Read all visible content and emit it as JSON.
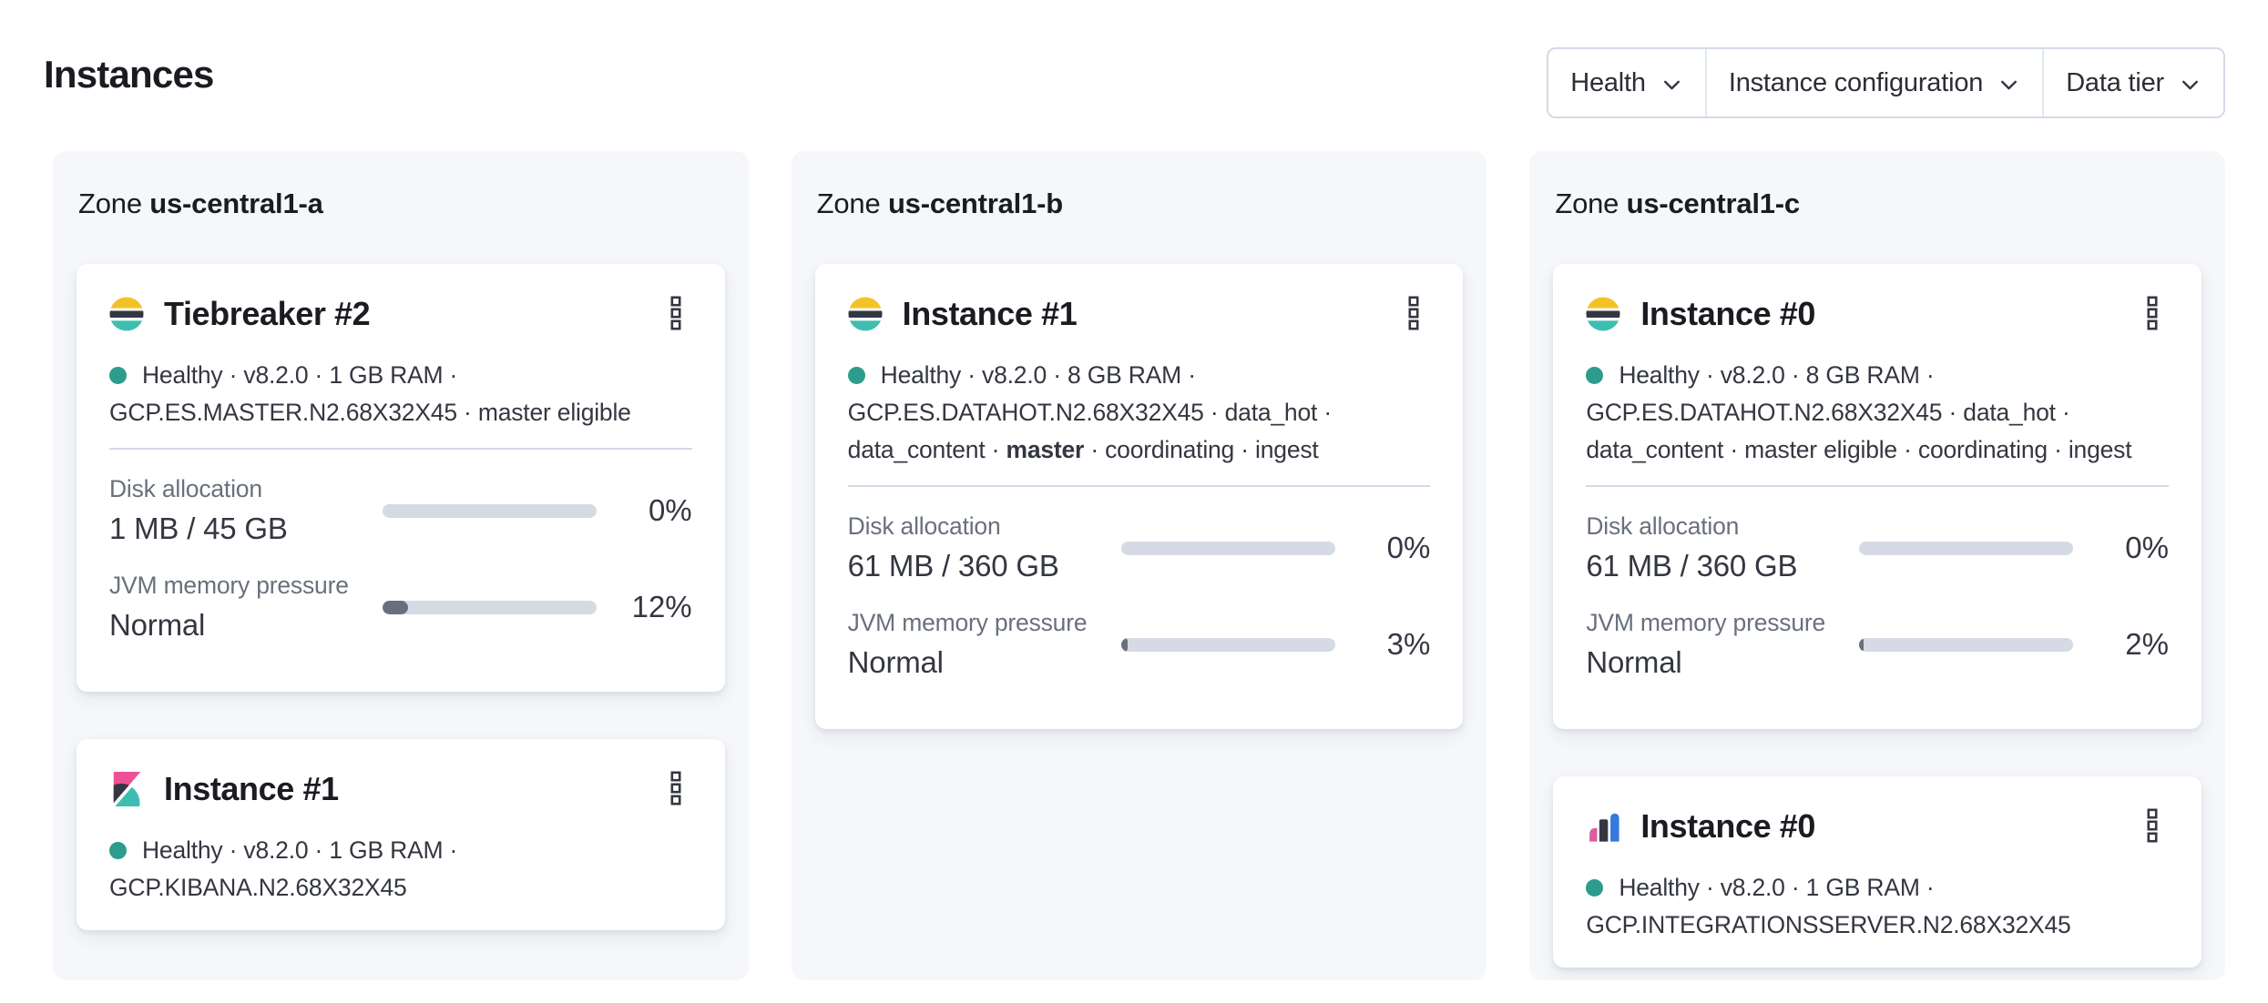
{
  "page": {
    "title": "Instances"
  },
  "filters": [
    {
      "label": "Health"
    },
    {
      "label": "Instance configuration"
    },
    {
      "label": "Data tier"
    }
  ],
  "colors": {
    "healthy_dot": "#2D9C8D",
    "progress_track": "#D5DAE4",
    "progress_fill": "#69707D",
    "panel_background": "#F5F7FA",
    "elasticsearch_logo": [
      "#F2C227",
      "#343741",
      "#3EBEB0"
    ],
    "kibana_logo": [
      "#EE5096",
      "#343741",
      "#3EBEB0"
    ],
    "integrations_server_logo": [
      "#DD5C9E",
      "#343741",
      "#3679DE"
    ]
  },
  "zones": [
    {
      "label_prefix": "Zone",
      "name": "us-central1-a",
      "cards": [
        {
          "icon": "elasticsearch-logo",
          "title": "Tiebreaker #2",
          "menu_icon": "kebab-menu",
          "status_lines": [
            {
              "dot": true,
              "segments": [
                {
                  "text": "Healthy · v8.2.0 · 1 GB RAM ·",
                  "bold": false
                }
              ]
            },
            {
              "dot": false,
              "segments": [
                {
                  "text": "GCP.ES.MASTER.N2.68X32X45 · master eligible",
                  "bold": false
                }
              ]
            }
          ],
          "metrics": [
            {
              "label": "Disk allocation",
              "value": "1 MB / 45 GB",
              "percent": 0,
              "percent_label": "0%"
            },
            {
              "label": "JVM memory pressure",
              "value": "Normal",
              "percent": 12,
              "percent_label": "12%"
            }
          ]
        },
        {
          "icon": "kibana-logo",
          "title": "Instance #1",
          "menu_icon": "kebab-menu",
          "status_lines": [
            {
              "dot": true,
              "segments": [
                {
                  "text": "Healthy · v8.2.0 · 1 GB RAM ·",
                  "bold": false
                }
              ]
            },
            {
              "dot": false,
              "segments": [
                {
                  "text": "GCP.KIBANA.N2.68X32X45",
                  "bold": false
                }
              ]
            }
          ],
          "metrics": []
        }
      ]
    },
    {
      "label_prefix": "Zone",
      "name": "us-central1-b",
      "cards": [
        {
          "icon": "elasticsearch-logo",
          "title": "Instance #1",
          "menu_icon": "kebab-menu",
          "status_lines": [
            {
              "dot": true,
              "segments": [
                {
                  "text": "Healthy · v8.2.0 · 8 GB RAM ·",
                  "bold": false
                }
              ]
            },
            {
              "dot": false,
              "segments": [
                {
                  "text": "GCP.ES.DATAHOT.N2.68X32X45 · data_hot ·",
                  "bold": false
                }
              ]
            },
            {
              "dot": false,
              "segments": [
                {
                  "text": "data_content · ",
                  "bold": false
                },
                {
                  "text": "master",
                  "bold": true
                },
                {
                  "text": " · coordinating · ingest",
                  "bold": false
                }
              ]
            }
          ],
          "metrics": [
            {
              "label": "Disk allocation",
              "value": "61 MB / 360 GB",
              "percent": 0,
              "percent_label": "0%"
            },
            {
              "label": "JVM memory pressure",
              "value": "Normal",
              "percent": 3,
              "percent_label": "3%"
            }
          ]
        }
      ]
    },
    {
      "label_prefix": "Zone",
      "name": "us-central1-c",
      "cards": [
        {
          "icon": "elasticsearch-logo",
          "title": "Instance #0",
          "menu_icon": "kebab-menu",
          "status_lines": [
            {
              "dot": true,
              "segments": [
                {
                  "text": "Healthy · v8.2.0 · 8 GB RAM ·",
                  "bold": false
                }
              ]
            },
            {
              "dot": false,
              "segments": [
                {
                  "text": "GCP.ES.DATAHOT.N2.68X32X45 · data_hot ·",
                  "bold": false
                }
              ]
            },
            {
              "dot": false,
              "segments": [
                {
                  "text": "data_content · master eligible · coordinating · ingest",
                  "bold": false
                }
              ]
            }
          ],
          "metrics": [
            {
              "label": "Disk allocation",
              "value": "61 MB / 360 GB",
              "percent": 0,
              "percent_label": "0%"
            },
            {
              "label": "JVM memory pressure",
              "value": "Normal",
              "percent": 2,
              "percent_label": "2%"
            }
          ]
        },
        {
          "icon": "integrations-server-logo",
          "title": "Instance #0",
          "menu_icon": "kebab-menu",
          "status_lines": [
            {
              "dot": true,
              "segments": [
                {
                  "text": "Healthy · v8.2.0 · 1 GB RAM ·",
                  "bold": false
                }
              ]
            },
            {
              "dot": false,
              "segments": [
                {
                  "text": "GCP.INTEGRATIONSSERVER.N2.68X32X45",
                  "bold": false
                }
              ]
            }
          ],
          "metrics": []
        }
      ]
    }
  ]
}
